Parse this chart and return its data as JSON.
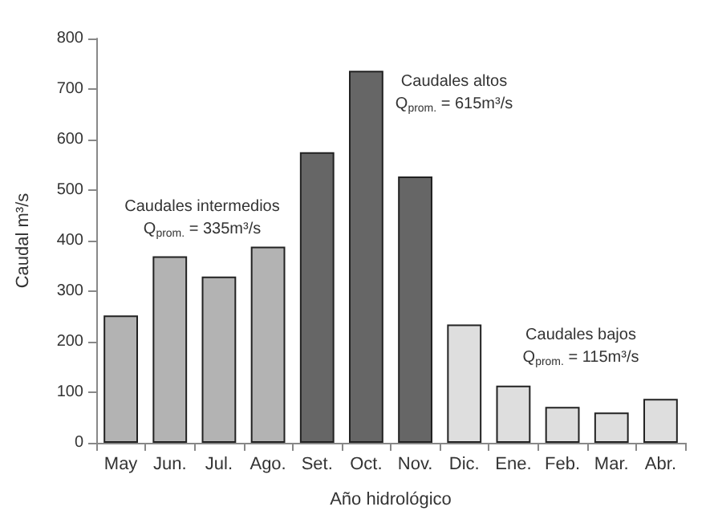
{
  "chart_data": {
    "type": "bar",
    "xlabel": "Año hidrológico",
    "ylabel": "Caudal m³/s",
    "categories": [
      "May",
      "Jun.",
      "Jul.",
      "Ago.",
      "Set.",
      "Oct.",
      "Nov.",
      "Dic.",
      "Ene.",
      "Feb.",
      "Mar.",
      "Abr."
    ],
    "values": [
      252,
      369,
      329,
      388,
      575,
      736,
      527,
      234,
      113,
      71,
      60,
      87
    ],
    "colors": [
      "#b3b3b3",
      "#b3b3b3",
      "#b3b3b3",
      "#b3b3b3",
      "#666666",
      "#666666",
      "#666666",
      "#dedede",
      "#dedede",
      "#dedede",
      "#dedede",
      "#dedede"
    ],
    "ylim": [
      0,
      800
    ],
    "yticks": [
      0,
      100,
      200,
      300,
      400,
      500,
      600,
      700,
      800
    ],
    "grid": false,
    "annotations": [
      "Caudales intermedios\nQ$_{prom.}$ = 335m³/s",
      "Caudales altos\nQ$_{prom.}$ = 615m³/s",
      "Caudales bajos\nQ$_{prom.}$ = 115m³/s"
    ]
  }
}
